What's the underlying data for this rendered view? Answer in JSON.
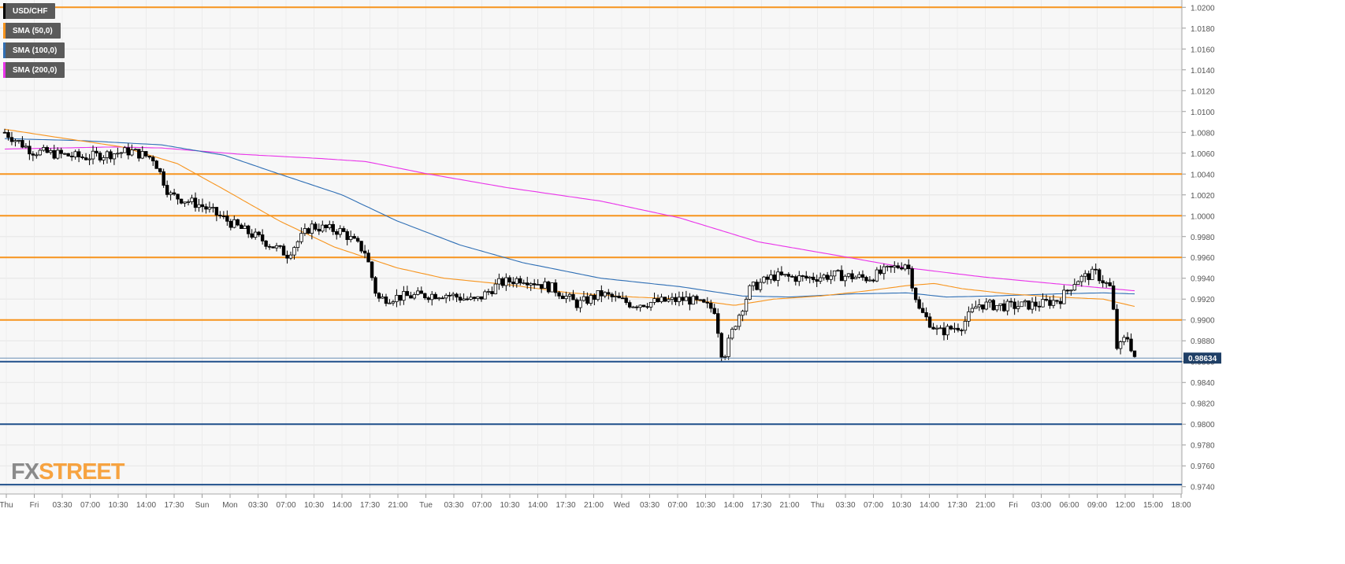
{
  "chart_data": {
    "type": "candlestick",
    "symbol": "USD/CHF",
    "legend": [
      {
        "label": "USD/CHF",
        "color": "#000000"
      },
      {
        "label": "SMA (50,0)",
        "color": "#f7941d"
      },
      {
        "label": "SMA (100,0)",
        "color": "#2f6fb5"
      },
      {
        "label": "SMA (200,0)",
        "color": "#e933e9"
      }
    ],
    "ylim": [
      0.9733,
      1.0207
    ],
    "y_ticks": [
      "1.0200",
      "1.0180",
      "1.0160",
      "1.0140",
      "1.0120",
      "1.0100",
      "1.0080",
      "1.0060",
      "1.0040",
      "1.0020",
      "1.0000",
      "0.9980",
      "0.9960",
      "0.9940",
      "0.9920",
      "0.9900",
      "0.9880",
      "0.9860",
      "0.9840",
      "0.9820",
      "0.9800",
      "0.9780",
      "0.9760",
      "0.9740"
    ],
    "x_ticks": [
      "Thu",
      "Fri",
      "03:30",
      "07:00",
      "10:30",
      "14:00",
      "17:30",
      "Sun",
      "Mon",
      "03:30",
      "07:00",
      "10:30",
      "14:00",
      "17:30",
      "21:00",
      "Tue",
      "03:30",
      "07:00",
      "10:30",
      "14:00",
      "17:30",
      "21:00",
      "Wed",
      "03:30",
      "07:00",
      "10:30",
      "14:00",
      "17:30",
      "21:00",
      "Thu",
      "03:30",
      "07:00",
      "10:30",
      "14:00",
      "17:30",
      "21:00",
      "Fri",
      "03:00",
      "06:00",
      "09:00",
      "12:00",
      "15:00",
      "18:00"
    ],
    "current_price": "0.98634",
    "resistance_levels": [
      1.02,
      1.004,
      1.0,
      0.996,
      0.99
    ],
    "support_levels": [
      0.986,
      0.98,
      0.9742
    ],
    "price_path": [
      [
        0,
        1.008
      ],
      [
        35,
        1.0062
      ],
      [
        100,
        1.0056
      ],
      [
        160,
        1.0062
      ],
      [
        190,
        1.0055
      ],
      [
        210,
        1.002
      ],
      [
        250,
        1.001
      ],
      [
        300,
        0.9988
      ],
      [
        330,
        0.9976
      ],
      [
        360,
        0.9963
      ],
      [
        390,
        0.999
      ],
      [
        430,
        0.9985
      ],
      [
        460,
        0.9965
      ],
      [
        475,
        0.992
      ],
      [
        500,
        0.9922
      ],
      [
        560,
        0.9925
      ],
      [
        600,
        0.9918
      ],
      [
        630,
        0.9935
      ],
      [
        660,
        0.994
      ],
      [
        700,
        0.993
      ],
      [
        730,
        0.9915
      ],
      [
        760,
        0.9925
      ],
      [
        800,
        0.9915
      ],
      [
        840,
        0.9918
      ],
      [
        870,
        0.992
      ],
      [
        905,
        0.991
      ],
      [
        915,
        0.9862
      ],
      [
        930,
        0.9895
      ],
      [
        950,
        0.993
      ],
      [
        980,
        0.9942
      ],
      [
        1020,
        0.994
      ],
      [
        1060,
        0.9943
      ],
      [
        1100,
        0.994
      ],
      [
        1150,
        0.9955
      ],
      [
        1165,
        0.991
      ],
      [
        1190,
        0.9888
      ],
      [
        1220,
        0.9895
      ],
      [
        1240,
        0.9915
      ],
      [
        1280,
        0.9913
      ],
      [
        1320,
        0.9915
      ],
      [
        1345,
        0.992
      ],
      [
        1365,
        0.9938
      ],
      [
        1390,
        0.9945
      ],
      [
        1410,
        0.993
      ],
      [
        1418,
        0.987
      ],
      [
        1430,
        0.9885
      ],
      [
        1440,
        0.9865
      ]
    ],
    "sma50": [
      [
        0,
        1.0083
      ],
      [
        60,
        1.0076
      ],
      [
        150,
        1.0066
      ],
      [
        220,
        1.005
      ],
      [
        280,
        1.0025
      ],
      [
        350,
        0.9995
      ],
      [
        420,
        0.997
      ],
      [
        500,
        0.995
      ],
      [
        560,
        0.994
      ],
      [
        640,
        0.9934
      ],
      [
        720,
        0.9926
      ],
      [
        800,
        0.9922
      ],
      [
        870,
        0.992
      ],
      [
        930,
        0.9914
      ],
      [
        980,
        0.992
      ],
      [
        1040,
        0.9923
      ],
      [
        1100,
        0.9928
      ],
      [
        1150,
        0.9933
      ],
      [
        1185,
        0.9935
      ],
      [
        1220,
        0.993
      ],
      [
        1280,
        0.9925
      ],
      [
        1340,
        0.9922
      ],
      [
        1400,
        0.992
      ],
      [
        1440,
        0.9913
      ]
    ],
    "sma100": [
      [
        0,
        1.0074
      ],
      [
        100,
        1.0072
      ],
      [
        200,
        1.0068
      ],
      [
        280,
        1.0058
      ],
      [
        350,
        1.004
      ],
      [
        430,
        1.002
      ],
      [
        500,
        0.9995
      ],
      [
        580,
        0.9972
      ],
      [
        660,
        0.9955
      ],
      [
        760,
        0.994
      ],
      [
        860,
        0.9932
      ],
      [
        940,
        0.9923
      ],
      [
        1000,
        0.9922
      ],
      [
        1080,
        0.9925
      ],
      [
        1150,
        0.9926
      ],
      [
        1200,
        0.9922
      ],
      [
        1260,
        0.9923
      ],
      [
        1340,
        0.9925
      ],
      [
        1400,
        0.9926
      ],
      [
        1440,
        0.9925
      ]
    ],
    "sma200": [
      [
        0,
        1.0064
      ],
      [
        140,
        1.0066
      ],
      [
        200,
        1.0065
      ],
      [
        300,
        1.0059
      ],
      [
        400,
        1.0055
      ],
      [
        460,
        1.0052
      ],
      [
        540,
        1.004
      ],
      [
        640,
        1.0027
      ],
      [
        760,
        1.0014
      ],
      [
        860,
        0.9998
      ],
      [
        960,
        0.9975
      ],
      [
        1060,
        0.9962
      ],
      [
        1150,
        0.995
      ],
      [
        1250,
        0.9941
      ],
      [
        1350,
        0.9934
      ],
      [
        1440,
        0.9928
      ]
    ]
  },
  "logo": {
    "fx": "FX",
    "street": "STREET"
  }
}
